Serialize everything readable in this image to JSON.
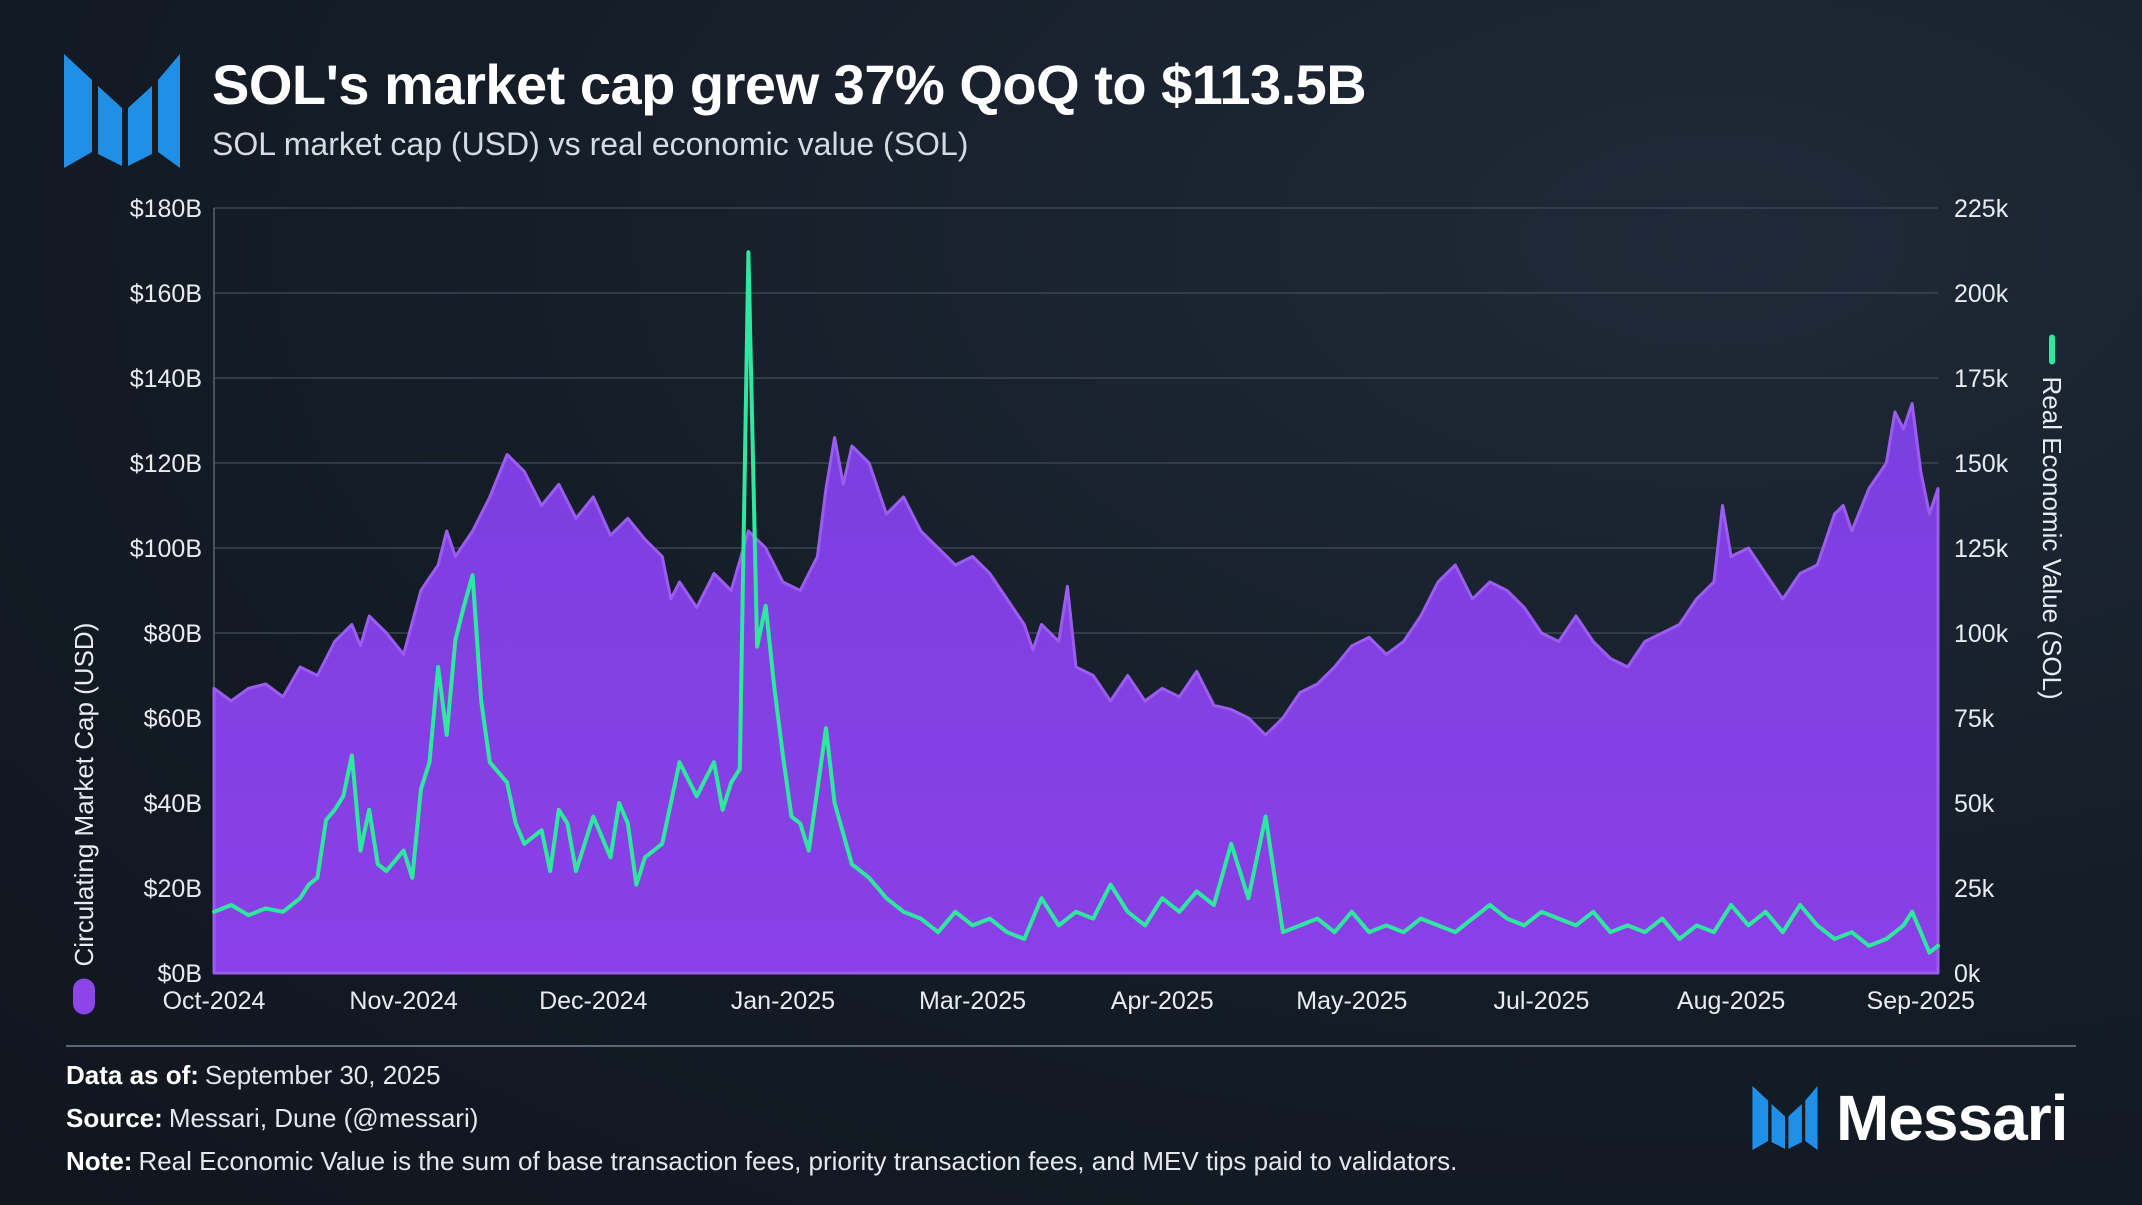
{
  "header": {
    "title": "SOL's market cap grew 37% QoQ to $113.5B",
    "subtitle": "SOL market cap (USD) vs real economic value (SOL)"
  },
  "footer": {
    "data_label": "Data as of:",
    "data_value": "September 30, 2025",
    "source_label": "Source:",
    "source_value": "Messari, Dune (@messari)",
    "note_label": "Note:",
    "note_value": "Real Economic Value is the sum of base transaction fees, priority transaction fees, and MEV tips paid to validators.",
    "brand": "Messari"
  },
  "colors": {
    "market_cap": "#7b3fe0",
    "rev": "#2ee8a0",
    "grid": "#3a4553",
    "axis_text": "#e8ecf1"
  },
  "chart_data": {
    "type": "area+line",
    "title": "SOL's market cap grew 37% QoQ to $113.5B",
    "x_range": [
      "2024-10-01",
      "2025-09-30"
    ],
    "x_ticks": [
      {
        "label": "Oct-2024",
        "t": 0.0
      },
      {
        "label": "Nov-2024",
        "t": 0.11
      },
      {
        "label": "Dec-2024",
        "t": 0.22
      },
      {
        "label": "Jan-2025",
        "t": 0.33
      },
      {
        "label": "Mar-2025",
        "t": 0.44
      },
      {
        "label": "Apr-2025",
        "t": 0.55
      },
      {
        "label": "May-2025",
        "t": 0.66
      },
      {
        "label": "Jul-2025",
        "t": 0.77
      },
      {
        "label": "Aug-2025",
        "t": 0.88
      },
      {
        "label": "Sep-2025",
        "t": 0.99
      }
    ],
    "y_left": {
      "label": "Circulating Market Cap (USD)",
      "min": 0,
      "max": 180,
      "ticks": [
        "$0B",
        "$20B",
        "$40B",
        "$60B",
        "$80B",
        "$100B",
        "$120B",
        "$140B",
        "$160B",
        "$180B"
      ]
    },
    "y_right": {
      "label": "Real Economic Value (SOL)",
      "min": 0,
      "max": 225,
      "ticks": [
        "0k",
        "25k",
        "50k",
        "75k",
        "100k",
        "125k",
        "150k",
        "175k",
        "200k",
        "225k"
      ]
    },
    "series": [
      {
        "name": "Circulating Market Cap (USD)",
        "unit": "USD billions",
        "axis": "left",
        "style": "area",
        "points": [
          [
            0.0,
            67
          ],
          [
            0.01,
            64
          ],
          [
            0.02,
            67
          ],
          [
            0.03,
            68
          ],
          [
            0.04,
            65
          ],
          [
            0.05,
            72
          ],
          [
            0.06,
            70
          ],
          [
            0.07,
            78
          ],
          [
            0.08,
            82
          ],
          [
            0.085,
            77
          ],
          [
            0.09,
            84
          ],
          [
            0.1,
            80
          ],
          [
            0.11,
            75
          ],
          [
            0.12,
            90
          ],
          [
            0.13,
            96
          ],
          [
            0.135,
            104
          ],
          [
            0.14,
            98
          ],
          [
            0.15,
            104
          ],
          [
            0.16,
            112
          ],
          [
            0.17,
            122
          ],
          [
            0.18,
            118
          ],
          [
            0.19,
            110
          ],
          [
            0.2,
            115
          ],
          [
            0.21,
            107
          ],
          [
            0.22,
            112
          ],
          [
            0.23,
            103
          ],
          [
            0.24,
            107
          ],
          [
            0.25,
            102
          ],
          [
            0.26,
            98
          ],
          [
            0.265,
            88
          ],
          [
            0.27,
            92
          ],
          [
            0.28,
            86
          ],
          [
            0.29,
            94
          ],
          [
            0.3,
            90
          ],
          [
            0.31,
            104
          ],
          [
            0.32,
            100
          ],
          [
            0.33,
            92
          ],
          [
            0.34,
            90
          ],
          [
            0.35,
            98
          ],
          [
            0.355,
            114
          ],
          [
            0.36,
            126
          ],
          [
            0.365,
            115
          ],
          [
            0.37,
            124
          ],
          [
            0.38,
            120
          ],
          [
            0.39,
            108
          ],
          [
            0.4,
            112
          ],
          [
            0.41,
            104
          ],
          [
            0.42,
            100
          ],
          [
            0.43,
            96
          ],
          [
            0.44,
            98
          ],
          [
            0.45,
            94
          ],
          [
            0.46,
            88
          ],
          [
            0.47,
            82
          ],
          [
            0.475,
            76
          ],
          [
            0.48,
            82
          ],
          [
            0.49,
            78
          ],
          [
            0.495,
            91
          ],
          [
            0.5,
            72
          ],
          [
            0.51,
            70
          ],
          [
            0.52,
            64
          ],
          [
            0.53,
            70
          ],
          [
            0.54,
            64
          ],
          [
            0.55,
            67
          ],
          [
            0.56,
            65
          ],
          [
            0.57,
            71
          ],
          [
            0.58,
            63
          ],
          [
            0.59,
            62
          ],
          [
            0.6,
            60
          ],
          [
            0.61,
            56
          ],
          [
            0.62,
            60
          ],
          [
            0.63,
            66
          ],
          [
            0.64,
            68
          ],
          [
            0.65,
            72
          ],
          [
            0.66,
            77
          ],
          [
            0.67,
            79
          ],
          [
            0.68,
            75
          ],
          [
            0.69,
            78
          ],
          [
            0.7,
            84
          ],
          [
            0.71,
            92
          ],
          [
            0.72,
            96
          ],
          [
            0.73,
            88
          ],
          [
            0.74,
            92
          ],
          [
            0.75,
            90
          ],
          [
            0.76,
            86
          ],
          [
            0.77,
            80
          ],
          [
            0.78,
            78
          ],
          [
            0.79,
            84
          ],
          [
            0.8,
            78
          ],
          [
            0.81,
            74
          ],
          [
            0.82,
            72
          ],
          [
            0.83,
            78
          ],
          [
            0.84,
            80
          ],
          [
            0.85,
            82
          ],
          [
            0.86,
            88
          ],
          [
            0.87,
            92
          ],
          [
            0.875,
            110
          ],
          [
            0.88,
            98
          ],
          [
            0.89,
            100
          ],
          [
            0.9,
            94
          ],
          [
            0.91,
            88
          ],
          [
            0.92,
            94
          ],
          [
            0.93,
            96
          ],
          [
            0.94,
            108
          ],
          [
            0.945,
            110
          ],
          [
            0.95,
            104
          ],
          [
            0.96,
            114
          ],
          [
            0.97,
            120
          ],
          [
            0.975,
            132
          ],
          [
            0.98,
            128
          ],
          [
            0.985,
            134
          ],
          [
            0.99,
            118
          ],
          [
            0.995,
            108
          ],
          [
            1.0,
            114
          ]
        ]
      },
      {
        "name": "Real Economic Value (SOL)",
        "unit": "SOL thousands",
        "axis": "right",
        "style": "line",
        "points": [
          [
            0.0,
            18
          ],
          [
            0.01,
            20
          ],
          [
            0.02,
            17
          ],
          [
            0.03,
            19
          ],
          [
            0.04,
            18
          ],
          [
            0.05,
            22
          ],
          [
            0.055,
            26
          ],
          [
            0.06,
            28
          ],
          [
            0.065,
            45
          ],
          [
            0.07,
            48
          ],
          [
            0.075,
            52
          ],
          [
            0.08,
            64
          ],
          [
            0.085,
            36
          ],
          [
            0.09,
            48
          ],
          [
            0.095,
            32
          ],
          [
            0.1,
            30
          ],
          [
            0.11,
            36
          ],
          [
            0.115,
            28
          ],
          [
            0.12,
            54
          ],
          [
            0.125,
            62
          ],
          [
            0.13,
            90
          ],
          [
            0.135,
            70
          ],
          [
            0.14,
            98
          ],
          [
            0.145,
            108
          ],
          [
            0.15,
            117
          ],
          [
            0.155,
            80
          ],
          [
            0.16,
            62
          ],
          [
            0.17,
            56
          ],
          [
            0.175,
            44
          ],
          [
            0.18,
            38
          ],
          [
            0.19,
            42
          ],
          [
            0.195,
            30
          ],
          [
            0.2,
            48
          ],
          [
            0.205,
            44
          ],
          [
            0.21,
            30
          ],
          [
            0.22,
            46
          ],
          [
            0.23,
            34
          ],
          [
            0.235,
            50
          ],
          [
            0.24,
            44
          ],
          [
            0.245,
            26
          ],
          [
            0.25,
            34
          ],
          [
            0.26,
            38
          ],
          [
            0.27,
            62
          ],
          [
            0.28,
            52
          ],
          [
            0.29,
            62
          ],
          [
            0.295,
            48
          ],
          [
            0.3,
            56
          ],
          [
            0.305,
            60
          ],
          [
            0.31,
            212
          ],
          [
            0.315,
            96
          ],
          [
            0.32,
            108
          ],
          [
            0.325,
            84
          ],
          [
            0.33,
            64
          ],
          [
            0.335,
            46
          ],
          [
            0.34,
            44
          ],
          [
            0.345,
            36
          ],
          [
            0.35,
            54
          ],
          [
            0.355,
            72
          ],
          [
            0.36,
            50
          ],
          [
            0.37,
            32
          ],
          [
            0.38,
            28
          ],
          [
            0.39,
            22
          ],
          [
            0.4,
            18
          ],
          [
            0.41,
            16
          ],
          [
            0.42,
            12
          ],
          [
            0.43,
            18
          ],
          [
            0.44,
            14
          ],
          [
            0.45,
            16
          ],
          [
            0.46,
            12
          ],
          [
            0.47,
            10
          ],
          [
            0.48,
            22
          ],
          [
            0.49,
            14
          ],
          [
            0.5,
            18
          ],
          [
            0.51,
            16
          ],
          [
            0.52,
            26
          ],
          [
            0.53,
            18
          ],
          [
            0.54,
            14
          ],
          [
            0.55,
            22
          ],
          [
            0.56,
            18
          ],
          [
            0.57,
            24
          ],
          [
            0.58,
            20
          ],
          [
            0.59,
            38
          ],
          [
            0.6,
            22
          ],
          [
            0.61,
            46
          ],
          [
            0.62,
            12
          ],
          [
            0.63,
            14
          ],
          [
            0.64,
            16
          ],
          [
            0.65,
            12
          ],
          [
            0.66,
            18
          ],
          [
            0.67,
            12
          ],
          [
            0.68,
            14
          ],
          [
            0.69,
            12
          ],
          [
            0.7,
            16
          ],
          [
            0.71,
            14
          ],
          [
            0.72,
            12
          ],
          [
            0.73,
            16
          ],
          [
            0.74,
            20
          ],
          [
            0.75,
            16
          ],
          [
            0.76,
            14
          ],
          [
            0.77,
            18
          ],
          [
            0.78,
            16
          ],
          [
            0.79,
            14
          ],
          [
            0.8,
            18
          ],
          [
            0.81,
            12
          ],
          [
            0.82,
            14
          ],
          [
            0.83,
            12
          ],
          [
            0.84,
            16
          ],
          [
            0.85,
            10
          ],
          [
            0.86,
            14
          ],
          [
            0.87,
            12
          ],
          [
            0.88,
            20
          ],
          [
            0.89,
            14
          ],
          [
            0.9,
            18
          ],
          [
            0.91,
            12
          ],
          [
            0.92,
            20
          ],
          [
            0.93,
            14
          ],
          [
            0.94,
            10
          ],
          [
            0.95,
            12
          ],
          [
            0.96,
            8
          ],
          [
            0.97,
            10
          ],
          [
            0.98,
            14
          ],
          [
            0.985,
            18
          ],
          [
            0.99,
            12
          ],
          [
            0.995,
            6
          ],
          [
            1.0,
            8
          ]
        ]
      }
    ],
    "legend": [
      {
        "name": "Circulating Market Cap (USD)",
        "position": "left-axis",
        "color": "#7b3fe0"
      },
      {
        "name": "Real Economic Value (SOL)",
        "position": "right-axis",
        "color": "#2ee8a0"
      }
    ]
  }
}
